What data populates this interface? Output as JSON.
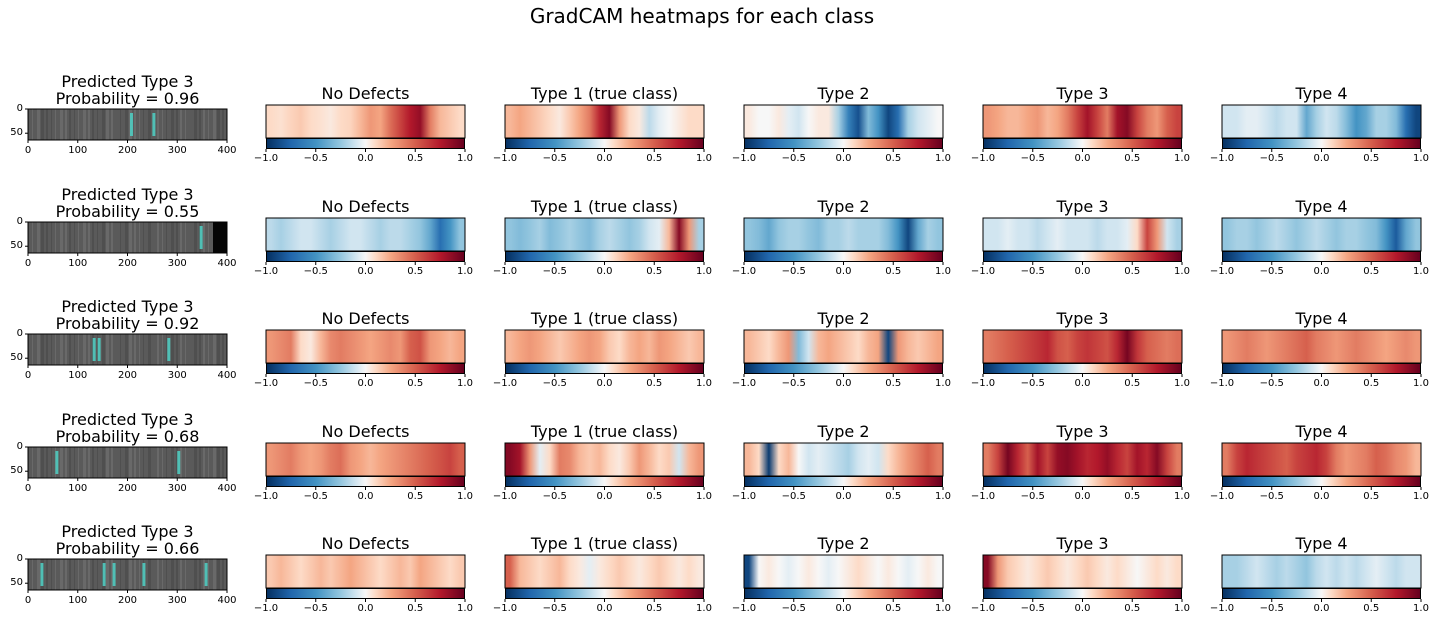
{
  "title": "GradCAM heatmaps for each class",
  "colors": {
    "colormap": "RdBu_r",
    "accent_defect": "#4fd1c5"
  },
  "chart_data": {
    "type": "heatmap",
    "title": "GradCAM heatmaps for each class",
    "rows": [
      {
        "image_title": [
          "Predicted Type 3",
          "Probability = 0.96"
        ],
        "heatmaps": [
          {
            "title": "No Defects",
            "intensity": [
              0.1,
              0.08,
              0.12,
              0.15,
              0.1,
              0.08,
              0.05,
              0.1,
              0.12,
              0.2,
              0.3,
              0.25,
              0.45,
              0.6,
              0.75,
              0.85,
              0.4,
              0.2,
              0.15,
              0.1
            ]
          },
          {
            "title": "Type 1 (true class)",
            "intensity": [
              0.2,
              0.25,
              0.2,
              0.15,
              0.1,
              0.05,
              0.15,
              0.25,
              0.4,
              0.7,
              0.9,
              0.3,
              0.1,
              0.05,
              -0.15,
              -0.05,
              0.0,
              0.05,
              0.1,
              0.1
            ]
          },
          {
            "title": "Type 2",
            "intensity": [
              0.05,
              0.0,
              0.0,
              0.05,
              -0.05,
              -0.1,
              0.0,
              0.05,
              0.05,
              -0.2,
              -0.6,
              -0.85,
              -0.3,
              -0.5,
              -0.9,
              -0.7,
              -0.2,
              -0.1,
              -0.05,
              0.0
            ]
          },
          {
            "title": "Type 3",
            "intensity": [
              0.3,
              0.25,
              0.2,
              0.2,
              0.25,
              0.3,
              0.2,
              0.25,
              0.4,
              0.6,
              0.8,
              0.6,
              0.4,
              0.8,
              0.9,
              0.6,
              0.4,
              0.3,
              0.5,
              0.6
            ]
          },
          {
            "title": "Type 4",
            "intensity": [
              -0.1,
              -0.1,
              -0.05,
              -0.05,
              -0.1,
              -0.15,
              -0.1,
              -0.1,
              -0.4,
              -0.2,
              -0.1,
              -0.15,
              -0.3,
              -0.5,
              -0.4,
              -0.2,
              -0.2,
              -0.3,
              -0.7,
              -0.9
            ]
          }
        ]
      },
      {
        "image_title": [
          "Predicted Type 3",
          "Probability = 0.55"
        ],
        "heatmaps": [
          {
            "title": "No Defects",
            "intensity": [
              -0.15,
              -0.2,
              -0.15,
              -0.1,
              -0.1,
              -0.15,
              -0.2,
              -0.15,
              -0.1,
              -0.1,
              -0.15,
              -0.2,
              -0.15,
              -0.15,
              -0.2,
              -0.25,
              -0.4,
              -0.7,
              -0.5,
              -0.25
            ]
          },
          {
            "title": "Type 1 (true class)",
            "intensity": [
              -0.25,
              -0.3,
              -0.25,
              -0.2,
              -0.3,
              -0.25,
              -0.2,
              -0.25,
              -0.3,
              -0.2,
              -0.15,
              -0.2,
              -0.25,
              -0.2,
              -0.1,
              -0.05,
              0.2,
              0.9,
              0.3,
              -0.2
            ]
          },
          {
            "title": "Type 2",
            "intensity": [
              -0.25,
              -0.3,
              -0.4,
              -0.25,
              -0.2,
              -0.2,
              -0.25,
              -0.3,
              -0.2,
              -0.2,
              -0.15,
              -0.2,
              -0.2,
              -0.2,
              -0.3,
              -0.5,
              -0.9,
              -0.4,
              -0.2,
              -0.25
            ]
          },
          {
            "title": "Type 3",
            "intensity": [
              -0.1,
              -0.1,
              -0.05,
              -0.1,
              -0.1,
              -0.15,
              -0.1,
              -0.05,
              -0.1,
              -0.1,
              -0.1,
              -0.15,
              -0.1,
              -0.1,
              -0.05,
              0.1,
              0.6,
              0.3,
              -0.1,
              -0.2
            ]
          },
          {
            "title": "Type 4",
            "intensity": [
              -0.25,
              -0.2,
              -0.2,
              -0.25,
              -0.2,
              -0.15,
              -0.2,
              -0.25,
              -0.2,
              -0.15,
              -0.2,
              -0.25,
              -0.2,
              -0.2,
              -0.25,
              -0.3,
              -0.5,
              -0.8,
              -0.4,
              -0.25
            ]
          }
        ]
      },
      {
        "image_title": [
          "Predicted Type 3",
          "Probability = 0.92"
        ],
        "heatmaps": [
          {
            "title": "No Defects",
            "intensity": [
              0.3,
              0.35,
              0.4,
              0.1,
              0.05,
              0.2,
              0.35,
              0.4,
              0.35,
              0.3,
              0.25,
              0.3,
              0.35,
              0.3,
              0.5,
              0.55,
              0.3,
              0.25,
              0.2,
              0.25
            ]
          },
          {
            "title": "Type 1 (true class)",
            "intensity": [
              0.2,
              0.25,
              0.3,
              0.25,
              0.2,
              0.15,
              0.2,
              0.25,
              0.3,
              0.25,
              0.15,
              0.1,
              0.2,
              0.25,
              0.2,
              0.3,
              0.25,
              0.2,
              0.15,
              0.2
            ]
          },
          {
            "title": "Type 2",
            "intensity": [
              0.2,
              0.15,
              0.1,
              0.2,
              0.3,
              -0.3,
              -0.1,
              0.2,
              0.25,
              0.2,
              0.15,
              0.1,
              0.2,
              0.25,
              -0.9,
              0.3,
              0.2,
              0.15,
              0.2,
              0.25
            ]
          },
          {
            "title": "Type 3",
            "intensity": [
              0.4,
              0.45,
              0.5,
              0.55,
              0.6,
              0.65,
              0.7,
              0.55,
              0.5,
              0.6,
              0.65,
              0.6,
              0.55,
              0.7,
              0.95,
              0.65,
              0.5,
              0.45,
              0.4,
              0.45
            ]
          },
          {
            "title": "Type 4",
            "intensity": [
              0.3,
              0.35,
              0.4,
              0.35,
              0.3,
              0.35,
              0.4,
              0.45,
              0.5,
              0.4,
              0.35,
              0.3,
              0.35,
              0.4,
              0.35,
              0.3,
              0.25,
              0.3,
              0.35,
              0.3
            ]
          }
        ]
      },
      {
        "image_title": [
          "Predicted Type 3",
          "Probability = 0.68"
        ],
        "heatmaps": [
          {
            "title": "No Defects",
            "intensity": [
              0.3,
              0.35,
              0.4,
              0.3,
              0.25,
              0.3,
              0.4,
              0.45,
              0.3,
              0.25,
              0.2,
              0.25,
              0.3,
              0.35,
              0.4,
              0.45,
              0.5,
              0.55,
              0.6,
              0.5
            ]
          },
          {
            "title": "Type 1 (true class)",
            "intensity": [
              0.9,
              0.8,
              0.3,
              -0.05,
              0.1,
              0.4,
              0.35,
              0.2,
              0.15,
              0.2,
              0.1,
              0.05,
              0.15,
              0.3,
              0.2,
              0.1,
              0.15,
              -0.1,
              0.2,
              0.3
            ]
          },
          {
            "title": "Type 2",
            "intensity": [
              0.2,
              0.1,
              -0.95,
              0.1,
              0.2,
              0.0,
              -0.1,
              -0.05,
              -0.1,
              -0.15,
              -0.2,
              -0.1,
              -0.05,
              -0.1,
              0.1,
              0.2,
              0.3,
              0.4,
              0.5,
              0.4
            ]
          },
          {
            "title": "Type 3",
            "intensity": [
              0.4,
              0.6,
              0.95,
              0.7,
              0.5,
              0.8,
              0.6,
              0.85,
              0.9,
              0.8,
              0.7,
              0.75,
              0.85,
              0.7,
              0.6,
              0.8,
              0.7,
              0.9,
              0.6,
              0.4
            ]
          },
          {
            "title": "Type 4",
            "intensity": [
              0.4,
              0.6,
              0.7,
              0.65,
              0.6,
              0.55,
              0.5,
              0.6,
              0.65,
              0.7,
              0.6,
              0.4,
              0.3,
              0.35,
              0.4,
              0.5,
              0.45,
              0.35,
              0.3,
              0.2
            ]
          }
        ]
      },
      {
        "image_title": [
          "Predicted Type 3",
          "Probability = 0.66"
        ],
        "heatmaps": [
          {
            "title": "No Defects",
            "intensity": [
              0.15,
              0.2,
              0.15,
              0.1,
              0.15,
              0.2,
              0.15,
              0.2,
              0.25,
              0.2,
              0.15,
              0.1,
              0.15,
              0.2,
              0.15,
              0.25,
              0.2,
              0.15,
              0.1,
              0.15
            ]
          },
          {
            "title": "Type 1 (true class)",
            "intensity": [
              0.5,
              0.2,
              0.15,
              0.1,
              0.15,
              0.2,
              0.1,
              0.05,
              -0.05,
              0.05,
              0.1,
              0.15,
              0.1,
              0.05,
              0.1,
              0.15,
              0.1,
              0.05,
              0.1,
              0.05
            ]
          },
          {
            "title": "Type 2",
            "intensity": [
              -0.9,
              0.0,
              0.05,
              0.0,
              -0.05,
              0.0,
              0.05,
              0.0,
              -0.05,
              0.0,
              0.05,
              0.1,
              0.05,
              0.0,
              0.05,
              0.0,
              -0.05,
              0.0,
              0.05,
              0.0
            ]
          },
          {
            "title": "Type 3",
            "intensity": [
              0.9,
              0.3,
              0.15,
              0.1,
              0.05,
              0.1,
              0.15,
              0.1,
              0.05,
              0.1,
              0.15,
              0.1,
              0.05,
              0.1,
              0.05,
              0.0,
              0.05,
              0.1,
              0.05,
              0.1
            ]
          },
          {
            "title": "Type 4",
            "intensity": [
              -0.2,
              -0.2,
              -0.15,
              -0.1,
              -0.15,
              -0.2,
              -0.15,
              -0.2,
              -0.25,
              -0.15,
              -0.1,
              -0.15,
              -0.1,
              -0.15,
              -0.1,
              -0.05,
              -0.1,
              -0.15,
              -0.1,
              -0.1
            ]
          }
        ]
      }
    ],
    "image_axes": {
      "x_ticks": [
        "0",
        "100",
        "200",
        "300",
        "400"
      ],
      "y_ticks": [
        "0",
        "50"
      ],
      "xlim": [
        0,
        400
      ],
      "ylim": [
        0,
        64
      ]
    },
    "colorbar": {
      "ticks": [
        "−1.0",
        "−0.5",
        "0.0",
        "0.5",
        "1.0"
      ],
      "range": [
        -1.0,
        1.0
      ],
      "cmap": "RdBu_r"
    },
    "defect_marks": [
      [
        205,
        250
      ],
      [
        345
      ],
      [
        130,
        140,
        280
      ],
      [
        55,
        300
      ],
      [
        25,
        150,
        170,
        230,
        355
      ]
    ]
  }
}
